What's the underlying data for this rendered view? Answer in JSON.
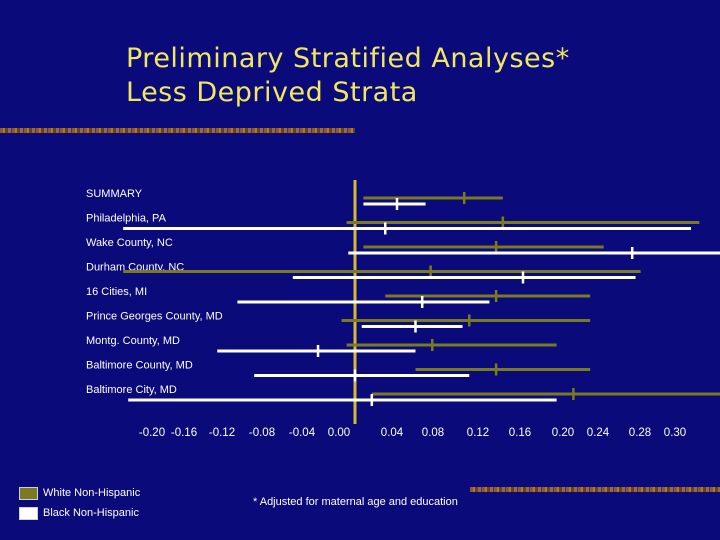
{
  "slide": {
    "title_line1": "Preliminary Stratified Analyses*",
    "title_line2": "Less Deprived Strata",
    "footnote": "* Adjusted for maternal age and education"
  },
  "colors": {
    "background": "#0a0a7a",
    "title": "#f0e860",
    "white_series": "#7a7a20",
    "black_series": "#ffffff",
    "zero_line": "#d8b830"
  },
  "legend": {
    "items": [
      {
        "label": "White Non-Hispanic",
        "color": "#7a7a20"
      },
      {
        "label": "Black Non-Hispanic",
        "color": "#ffffff"
      }
    ]
  },
  "chart_data": {
    "type": "forest",
    "x_ticks": [
      "-0.20",
      "-0.16",
      "-0.12",
      "-0.08",
      "-0.04",
      "0.00",
      "0.04",
      "0.08",
      "0.12",
      "0.16",
      "0.20",
      "0.24",
      "0.28",
      "0.30"
    ],
    "xlim": [
      -0.2,
      0.3
    ],
    "reference_value": 0.0,
    "rows": [
      {
        "label": "SUMMARY",
        "white": {
          "low": 0.005,
          "est": 0.065,
          "high": 0.088
        },
        "black": {
          "low": 0.005,
          "est": 0.025,
          "high": 0.042
        }
      },
      {
        "label": "Philadelphia, PA",
        "white": {
          "low": -0.005,
          "est": 0.088,
          "high": 0.205
        },
        "black": {
          "low": -0.138,
          "est": 0.018,
          "high": 0.2
        }
      },
      {
        "label": "Wake County, NC",
        "white": {
          "low": 0.005,
          "est": 0.084,
          "high": 0.148
        },
        "black": {
          "low": -0.004,
          "est": 0.165,
          "high": 0.284
        }
      },
      {
        "label": "Durham County, NC",
        "white": {
          "low": -0.138,
          "est": 0.045,
          "high": 0.17
        },
        "black": {
          "low": -0.037,
          "est": 0.1,
          "high": 0.167
        }
      },
      {
        "label": "16 Cities, MI",
        "white": {
          "low": 0.018,
          "est": 0.084,
          "high": 0.14
        },
        "black": {
          "low": -0.07,
          "est": 0.04,
          "high": 0.08
        }
      },
      {
        "label": "Prince Georges County, MD",
        "white": {
          "low": -0.008,
          "est": 0.068,
          "high": 0.14
        },
        "black": {
          "low": 0.004,
          "est": 0.036,
          "high": 0.064
        }
      },
      {
        "label": "Montg. County, MD",
        "white": {
          "low": -0.005,
          "est": 0.046,
          "high": 0.12
        },
        "black": {
          "low": -0.082,
          "est": -0.022,
          "high": 0.036
        }
      },
      {
        "label": "Baltimore County, MD",
        "white": {
          "low": 0.036,
          "est": 0.084,
          "high": 0.14
        },
        "black": {
          "low": -0.06,
          "est": 0.0,
          "high": 0.068
        }
      },
      {
        "label": "Baltimore City, MD",
        "white": {
          "low": 0.01,
          "est": 0.13,
          "high": 0.275
        },
        "black": {
          "low": -0.135,
          "est": 0.01,
          "high": 0.12
        }
      }
    ]
  }
}
